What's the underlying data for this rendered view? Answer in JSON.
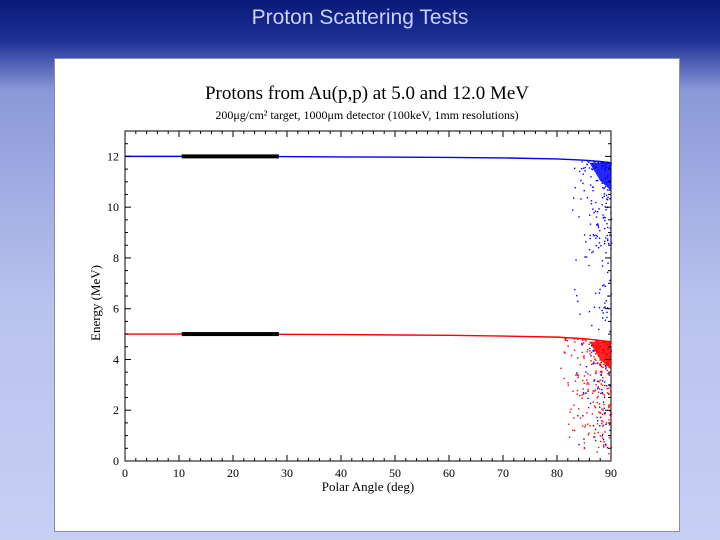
{
  "slide": {
    "title": "Proton Scattering Tests"
  },
  "chart_data": {
    "type": "scatter",
    "title": "Protons from Au(p,p) at 5.0 and 12.0 MeV",
    "subtitle": "200μg/cm² target, 1000μm detector (100keV, 1mm resolutions)",
    "xlabel": "Polar Angle (deg)",
    "ylabel": "Energy (MeV)",
    "xlim": [
      0,
      90
    ],
    "ylim": [
      0,
      13
    ],
    "xticks": [
      0,
      10,
      20,
      30,
      40,
      50,
      60,
      70,
      80,
      90
    ],
    "yticks": [
      0,
      2,
      4,
      6,
      8,
      10,
      12
    ],
    "grid": false,
    "series": [
      {
        "color": "#0000ff",
        "beam_energy": 12.0,
        "curve": {
          "x": [
            0,
            20,
            40,
            60,
            70,
            80,
            85,
            88,
            90
          ],
          "y": [
            12.0,
            12.0,
            11.98,
            11.96,
            11.94,
            11.9,
            11.85,
            11.8,
            11.75
          ]
        },
        "tail_x_range": [
          82,
          90
        ],
        "tail_y_range": [
          0.5,
          11.8
        ]
      },
      {
        "color": "#ff0000",
        "beam_energy": 5.0,
        "curve": {
          "x": [
            0,
            20,
            40,
            60,
            70,
            80,
            85,
            88,
            90
          ],
          "y": [
            5.0,
            5.0,
            4.98,
            4.95,
            4.92,
            4.88,
            4.82,
            4.75,
            4.7
          ]
        },
        "tail_x_range": [
          80,
          90
        ],
        "tail_y_range": [
          0.3,
          4.9
        ]
      },
      {
        "color": "#000000",
        "band_x_range": [
          10.5,
          28.5
        ],
        "band_y": [
          12.0,
          5.0
        ]
      }
    ]
  }
}
